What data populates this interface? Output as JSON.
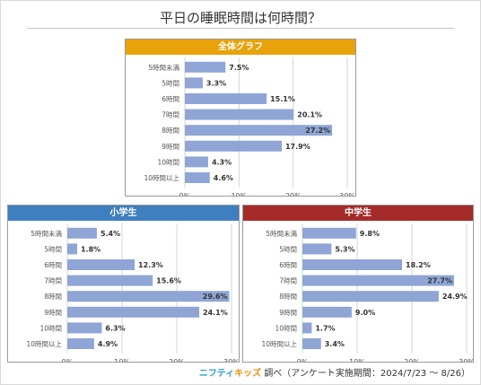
{
  "page": {
    "title": "平日の睡眠時間は何時間？",
    "footer_logo_a": "ニフティ",
    "footer_logo_b": "キッズ",
    "footer_text": "調べ（アンケート実施期間：2024/7/23 ～ 8/26）"
  },
  "colors": {
    "overall": "#e8a30c",
    "elementary": "#3f7fbf",
    "middle": "#a52a2a",
    "bar": "#8fa5d6"
  },
  "chart_data": [
    {
      "type": "bar",
      "title": "全体グラフ",
      "categories": [
        "5時間未満",
        "5時間",
        "6時間",
        "7時間",
        "8時間",
        "9時間",
        "10時間",
        "10時間以上"
      ],
      "values": [
        7.5,
        3.3,
        15.1,
        20.1,
        27.2,
        17.9,
        4.3,
        4.6
      ],
      "value_labels": [
        "7.5%",
        "3.3%",
        "15.1%",
        "20.1%",
        "27.2%",
        "17.9%",
        "4.3%",
        "4.6%"
      ],
      "ticks": [
        "0%",
        "10%",
        "20%",
        "30%"
      ],
      "xlim": [
        0,
        30
      ],
      "orientation": "horizontal"
    },
    {
      "type": "bar",
      "title": "小学生",
      "categories": [
        "5時間未満",
        "5時間",
        "6時間",
        "7時間",
        "8時間",
        "9時間",
        "10時間",
        "10時間以上"
      ],
      "values": [
        5.4,
        1.8,
        12.3,
        15.6,
        29.6,
        24.1,
        6.3,
        4.9
      ],
      "value_labels": [
        "5.4%",
        "1.8%",
        "12.3%",
        "15.6%",
        "29.6%",
        "24.1%",
        "6.3%",
        "4.9%"
      ],
      "ticks": [
        "0%",
        "10%",
        "20%",
        "30%"
      ],
      "xlim": [
        0,
        30
      ],
      "orientation": "horizontal"
    },
    {
      "type": "bar",
      "title": "中学生",
      "categories": [
        "5時間未満",
        "5時間",
        "6時間",
        "7時間",
        "8時間",
        "9時間",
        "10時間",
        "10時間以上"
      ],
      "values": [
        9.8,
        5.3,
        18.2,
        27.7,
        24.9,
        9.0,
        1.7,
        3.4
      ],
      "value_labels": [
        "9.8%",
        "5.3%",
        "18.2%",
        "27.7%",
        "24.9%",
        "9.0%",
        "1.7%",
        "3.4%"
      ],
      "ticks": [
        "0%",
        "10%",
        "20%",
        "30%"
      ],
      "xlim": [
        0,
        30
      ],
      "orientation": "horizontal"
    }
  ]
}
